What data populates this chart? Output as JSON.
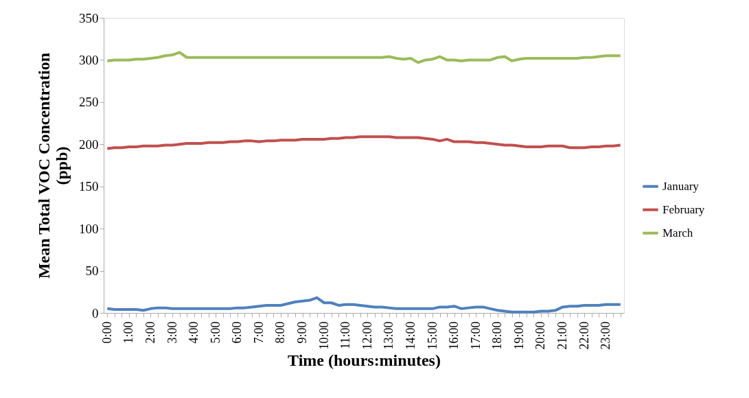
{
  "chart_data": {
    "type": "line",
    "xlabel": "Time (hours:minutes)",
    "ylabel": "Mean Total VOC Concentration (ppb)",
    "categories": [
      "0:00",
      null,
      null,
      "1:00",
      null,
      null,
      "2:00",
      null,
      null,
      "3:00",
      null,
      null,
      "4:00",
      null,
      null,
      "5:00",
      null,
      null,
      "6:00",
      null,
      null,
      "7:00",
      null,
      null,
      "8:00",
      null,
      null,
      "9:00",
      null,
      null,
      "10:00",
      null,
      null,
      "11:00",
      null,
      null,
      "12:00",
      null,
      null,
      "13:00",
      null,
      null,
      "14:00",
      null,
      null,
      "15:00",
      null,
      null,
      "16:00",
      null,
      null,
      "17:00",
      null,
      null,
      "18:00",
      null,
      null,
      "19:00",
      null,
      null,
      "20:00",
      null,
      null,
      "21:00",
      null,
      null,
      "22:00",
      null,
      null,
      "23:00",
      null,
      null
    ],
    "series": [
      {
        "name": "January",
        "color": "#4f81bd",
        "values": [
          5,
          4,
          4,
          4,
          4,
          3,
          5,
          6,
          6,
          5,
          5,
          5,
          5,
          5,
          5,
          5,
          5,
          5,
          6,
          6,
          7,
          8,
          9,
          9,
          9,
          11,
          13,
          14,
          15,
          18,
          12,
          12,
          9,
          10,
          10,
          9,
          8,
          7,
          7,
          6,
          5,
          5,
          5,
          5,
          5,
          5,
          7,
          7,
          8,
          5,
          6,
          7,
          7,
          5,
          3,
          2,
          1,
          1,
          1,
          1,
          2,
          2,
          3,
          7,
          8,
          8,
          9,
          9,
          9,
          10,
          10,
          10
        ]
      },
      {
        "name": "February",
        "color": "#c0504d",
        "values": [
          195,
          196,
          196,
          197,
          197,
          198,
          198,
          198,
          199,
          199,
          200,
          201,
          201,
          201,
          202,
          202,
          202,
          203,
          203,
          204,
          204,
          203,
          204,
          204,
          205,
          205,
          205,
          206,
          206,
          206,
          206,
          207,
          207,
          208,
          208,
          209,
          209,
          209,
          209,
          209,
          208,
          208,
          208,
          208,
          207,
          206,
          204,
          206,
          203,
          203,
          203,
          202,
          202,
          201,
          200,
          199,
          199,
          198,
          197,
          197,
          197,
          198,
          198,
          198,
          196,
          196,
          196,
          197,
          197,
          198,
          198,
          199
        ]
      },
      {
        "name": "March",
        "color": "#9bbb59",
        "values": [
          299,
          300,
          300,
          300,
          301,
          301,
          302,
          303,
          305,
          306,
          309,
          303,
          303,
          303,
          303,
          303,
          303,
          303,
          303,
          303,
          303,
          303,
          303,
          303,
          303,
          303,
          303,
          303,
          303,
          303,
          303,
          303,
          303,
          303,
          303,
          303,
          303,
          303,
          303,
          304,
          302,
          301,
          302,
          297,
          300,
          301,
          304,
          300,
          300,
          299,
          300,
          300,
          300,
          300,
          303,
          304,
          299,
          301,
          302,
          302,
          302,
          302,
          302,
          302,
          302,
          302,
          303,
          303,
          304,
          305,
          305,
          305
        ]
      }
    ],
    "ylim": [
      0,
      350
    ],
    "yticks": [
      0,
      50,
      100,
      150,
      200,
      250,
      300,
      350
    ],
    "grid": false,
    "legend": "right",
    "marker": "none",
    "line_style": "solid"
  }
}
